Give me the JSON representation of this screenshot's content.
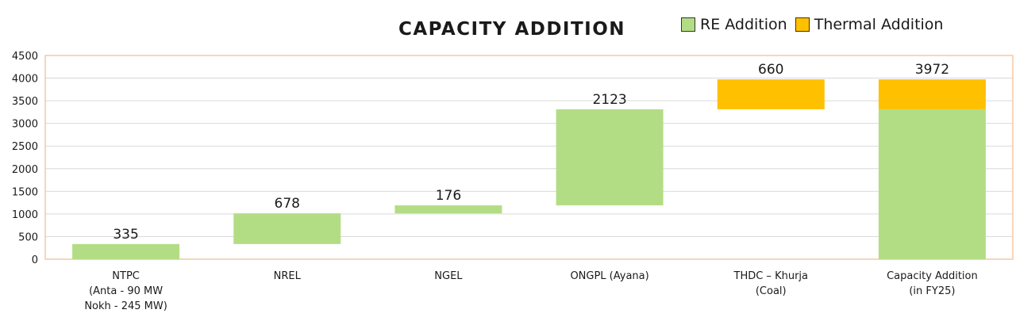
{
  "chart_data": {
    "type": "bar",
    "subtype": "waterfall",
    "title": "CAPACITY ADDITION",
    "legend": [
      {
        "name": "RE Addition",
        "color": "#b3dd84"
      },
      {
        "name": "Thermal Addition",
        "color": "#ffc000"
      }
    ],
    "ylim": [
      0,
      4500
    ],
    "yticks": [
      "0",
      "500",
      "1000",
      "1500",
      "2000",
      "2500",
      "3000",
      "3500",
      "4000",
      "4500"
    ],
    "categories": [
      [
        "NTPC",
        "(Anta - 90 MW",
        "Nokh - 245 MW)"
      ],
      [
        "NREL"
      ],
      [
        "NGEL"
      ],
      [
        "ONGPL (Ayana)"
      ],
      [
        "THDC – Khurja",
        "(Coal)"
      ],
      [
        "Capacity Addition",
        "(in FY25)"
      ]
    ],
    "data_labels": [
      "335",
      "678",
      "176",
      "2123",
      "660",
      "3972"
    ],
    "segments": [
      {
        "category_index": 0,
        "start": 0,
        "end": 335,
        "series": "RE Addition"
      },
      {
        "category_index": 1,
        "start": 335,
        "end": 1013,
        "series": "RE Addition"
      },
      {
        "category_index": 2,
        "start": 1013,
        "end": 1189,
        "series": "RE Addition"
      },
      {
        "category_index": 3,
        "start": 1189,
        "end": 3312,
        "series": "RE Addition"
      },
      {
        "category_index": 4,
        "start": 3312,
        "end": 3972,
        "series": "Thermal Addition"
      },
      {
        "category_index": 5,
        "start": 0,
        "end": 3312,
        "series": "RE Addition"
      },
      {
        "category_index": 5,
        "start": 3312,
        "end": 3972,
        "series": "Thermal Addition"
      }
    ],
    "grid": true,
    "legend_position": "top-right"
  }
}
